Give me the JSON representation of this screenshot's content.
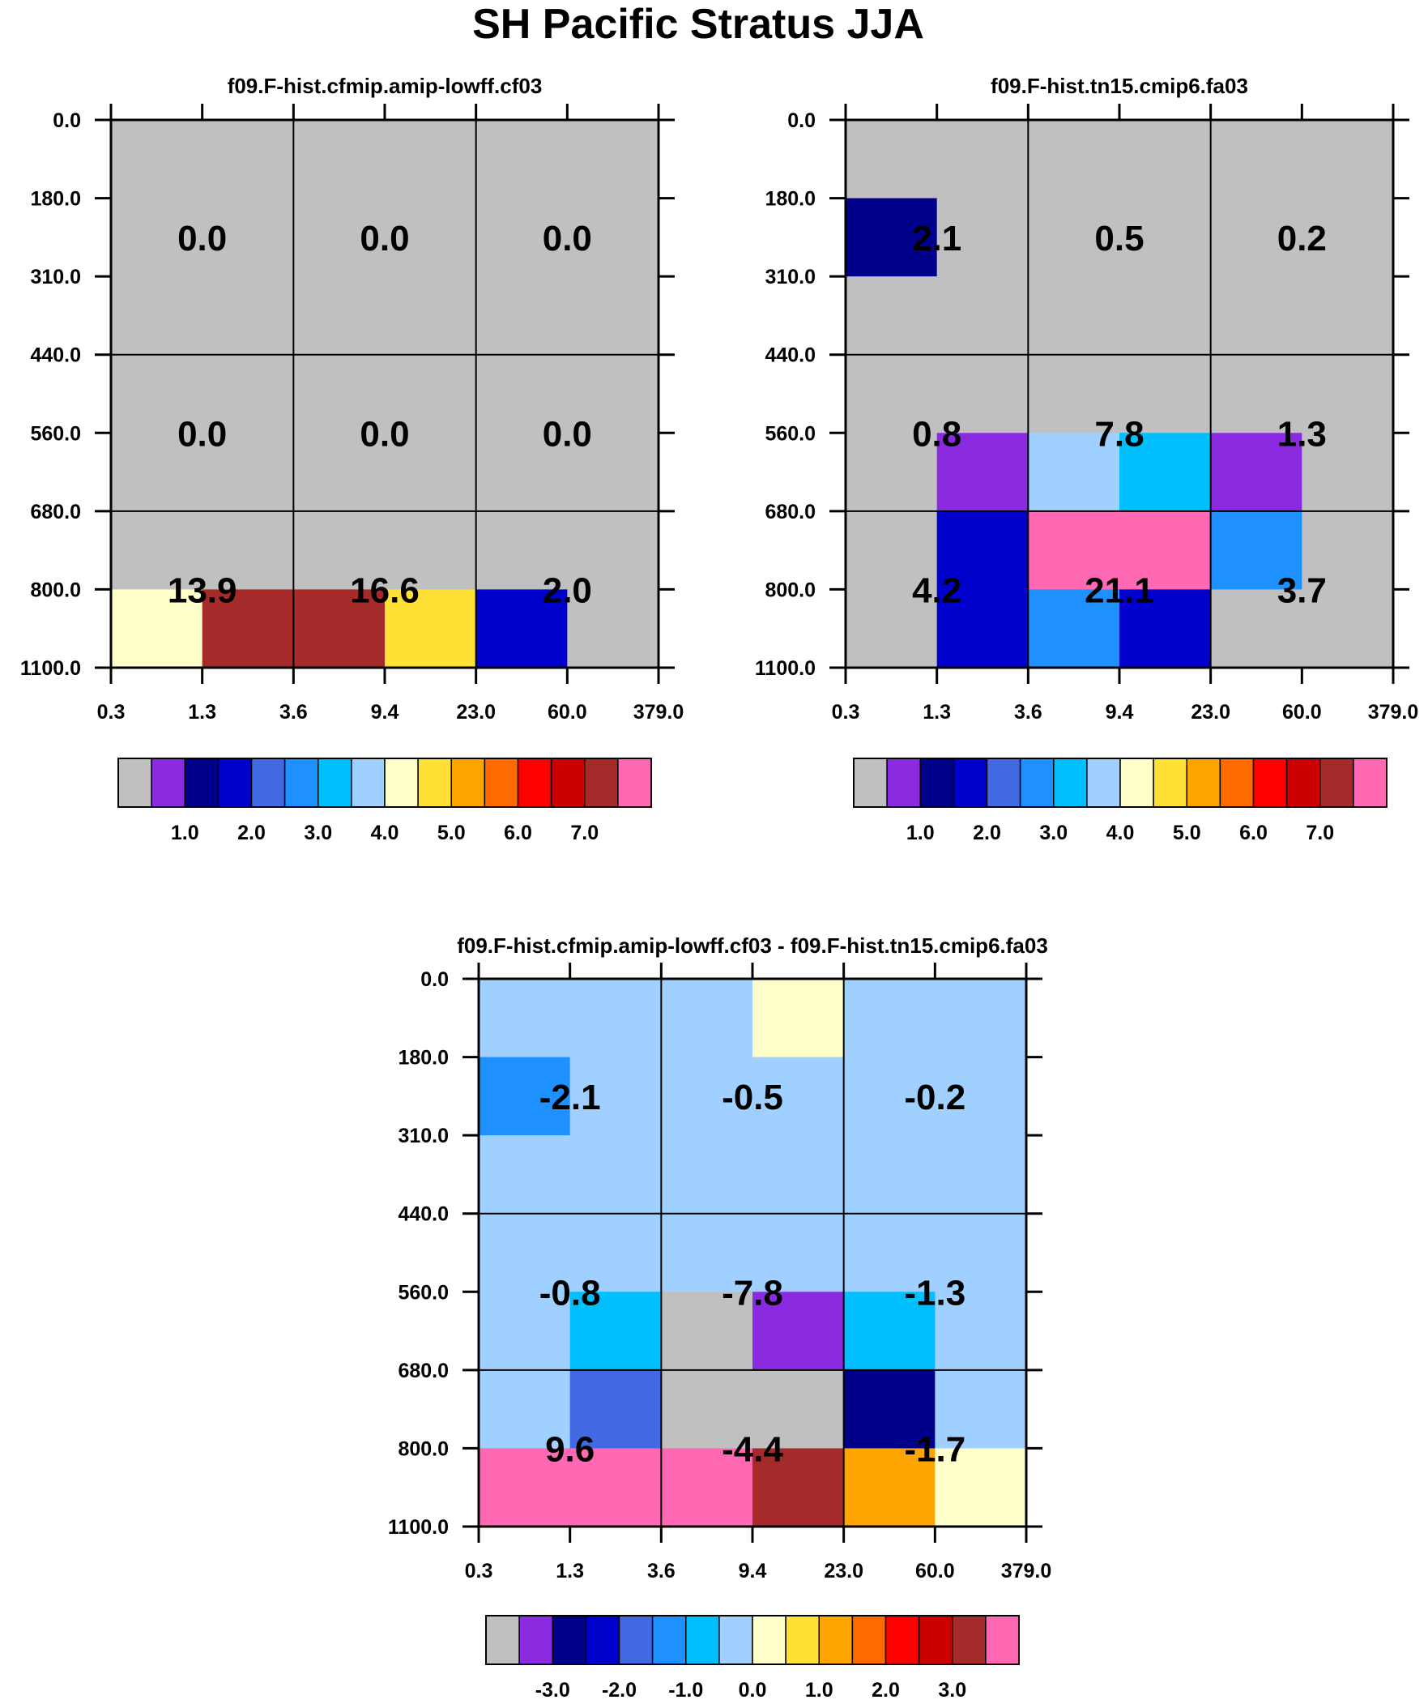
{
  "figure": {
    "title": "SH Pacific Stratus JJA"
  },
  "chart_data": [
    {
      "type": "heatmap",
      "title": "f09.F-hist.cfmip.amip-lowff.cf03",
      "x_ticks": [
        "0.3",
        "1.3",
        "3.6",
        "9.4",
        "23.0",
        "60.0",
        "379.0"
      ],
      "y_ticks": [
        "0.0",
        "180.0",
        "310.0",
        "440.0",
        "560.0",
        "680.0",
        "800.0",
        "1100.0"
      ],
      "box_values": [
        [
          "0.0",
          "0.0",
          "0.0"
        ],
        [
          "0.0",
          "0.0",
          "0.0"
        ],
        [
          "13.9",
          "16.6",
          "2.0"
        ]
      ],
      "cells": [
        [
          0,
          0,
          0,
          0,
          0,
          0
        ],
        [
          0,
          0,
          0,
          0,
          0,
          0
        ],
        [
          0,
          0,
          0,
          0,
          0,
          0
        ],
        [
          0,
          0,
          0,
          0,
          0,
          0
        ],
        [
          0,
          0,
          0,
          0,
          0,
          0
        ],
        [
          0,
          0,
          0,
          0,
          0,
          0
        ],
        [
          8,
          14,
          14,
          9,
          3,
          0
        ]
      ],
      "colorbar": {
        "colors": [
          "#c0c0c0",
          "#8a2be2",
          "#00008b",
          "#0000cd",
          "#4169e1",
          "#1e90ff",
          "#00bfff",
          "#a0d0ff",
          "#ffffcc",
          "#ffe135",
          "#ffa500",
          "#ff6a00",
          "#ff0000",
          "#cc0000",
          "#a52a2a",
          "#ff69b4"
        ],
        "labels": [
          "1.0",
          "2.0",
          "3.0",
          "4.0",
          "5.0",
          "6.0",
          "7.0"
        ],
        "first_label_after_box": 1
      }
    },
    {
      "type": "heatmap",
      "title": "f09.F-hist.tn15.cmip6.fa03",
      "x_ticks": [
        "0.3",
        "1.3",
        "3.6",
        "9.4",
        "23.0",
        "60.0",
        "379.0"
      ],
      "y_ticks": [
        "0.0",
        "180.0",
        "310.0",
        "440.0",
        "560.0",
        "680.0",
        "800.0",
        "1100.0"
      ],
      "box_values": [
        [
          "2.1",
          "0.5",
          "0.2"
        ],
        [
          "0.8",
          "7.8",
          "1.3"
        ],
        [
          "4.2",
          "21.1",
          "3.7"
        ]
      ],
      "cells": [
        [
          0,
          0,
          0,
          0,
          0,
          0
        ],
        [
          2,
          0,
          0,
          0,
          0,
          0
        ],
        [
          0,
          0,
          0,
          0,
          0,
          0
        ],
        [
          0,
          0,
          0,
          0,
          0,
          0
        ],
        [
          0,
          1,
          7,
          6,
          1,
          0
        ],
        [
          0,
          3,
          15,
          15,
          5,
          0
        ],
        [
          0,
          3,
          5,
          3,
          0,
          0
        ]
      ],
      "colorbar": {
        "colors": [
          "#c0c0c0",
          "#8a2be2",
          "#00008b",
          "#0000cd",
          "#4169e1",
          "#1e90ff",
          "#00bfff",
          "#a0d0ff",
          "#ffffcc",
          "#ffe135",
          "#ffa500",
          "#ff6a00",
          "#ff0000",
          "#cc0000",
          "#a52a2a",
          "#ff69b4"
        ],
        "labels": [
          "1.0",
          "2.0",
          "3.0",
          "4.0",
          "5.0",
          "6.0",
          "7.0"
        ],
        "first_label_after_box": 1
      }
    },
    {
      "type": "heatmap",
      "title": "f09.F-hist.cfmip.amip-lowff.cf03 - f09.F-hist.tn15.cmip6.fa03",
      "x_ticks": [
        "0.3",
        "1.3",
        "3.6",
        "9.4",
        "23.0",
        "60.0",
        "379.0"
      ],
      "y_ticks": [
        "0.0",
        "180.0",
        "310.0",
        "440.0",
        "560.0",
        "680.0",
        "800.0",
        "1100.0"
      ],
      "box_values": [
        [
          "-2.1",
          "-0.5",
          "-0.2"
        ],
        [
          "-0.8",
          "-7.8",
          "-1.3"
        ],
        [
          "9.6",
          "-4.4",
          "-1.7"
        ]
      ],
      "cells": [
        [
          7,
          7,
          7,
          8,
          7,
          7
        ],
        [
          5,
          7,
          7,
          7,
          7,
          7
        ],
        [
          7,
          7,
          7,
          7,
          7,
          7
        ],
        [
          7,
          7,
          7,
          7,
          7,
          7
        ],
        [
          7,
          6,
          0,
          1,
          6,
          7
        ],
        [
          7,
          4,
          0,
          0,
          2,
          7
        ],
        [
          15,
          15,
          15,
          14,
          10,
          8
        ]
      ],
      "colorbar": {
        "colors": [
          "#c0c0c0",
          "#8a2be2",
          "#00008b",
          "#0000cd",
          "#4169e1",
          "#1e90ff",
          "#00bfff",
          "#a0d0ff",
          "#ffffcc",
          "#ffe135",
          "#ffa500",
          "#ff6a00",
          "#ff0000",
          "#cc0000",
          "#a52a2a",
          "#ff69b4"
        ],
        "labels": [
          "-3.0",
          "-2.0",
          "-1.0",
          "0.0",
          "1.0",
          "2.0",
          "3.0"
        ],
        "first_label_after_box": 1
      }
    }
  ]
}
